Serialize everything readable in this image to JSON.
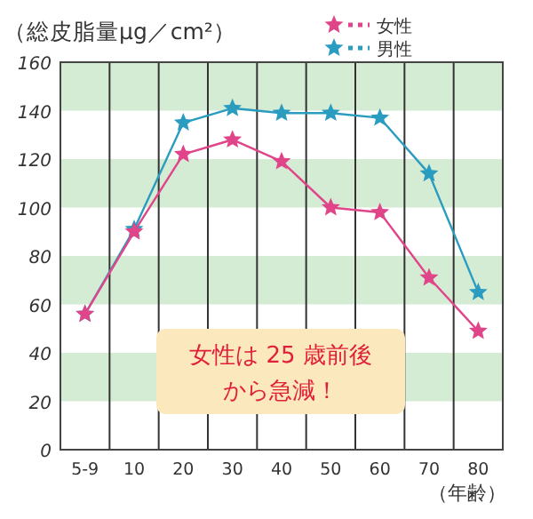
{
  "chart_data": {
    "type": "line",
    "ylabel": "（総皮脂量μg／cm²）",
    "xlabel": "（年齢）",
    "categories": [
      "5-9",
      "10",
      "20",
      "30",
      "40",
      "50",
      "60",
      "70",
      "80"
    ],
    "series": [
      {
        "name": "女性",
        "color": "#e0458a",
        "values": [
          56,
          90,
          122,
          128,
          119,
          100,
          98,
          71,
          49
        ]
      },
      {
        "name": "男性",
        "color": "#2a9cc0",
        "values": [
          56,
          91,
          135,
          141,
          139,
          139,
          137,
          114,
          65
        ]
      }
    ],
    "ylim": [
      0,
      160
    ],
    "yticks": [
      0,
      20,
      40,
      60,
      80,
      100,
      120,
      140,
      160
    ],
    "bands": [
      {
        "axis": "y",
        "from": 20,
        "to": 40,
        "color": "#d4ebd4"
      },
      {
        "axis": "y",
        "from": 60,
        "to": 80,
        "color": "#d4ebd4"
      },
      {
        "axis": "y",
        "from": 100,
        "to": 120,
        "color": "#d4ebd4"
      },
      {
        "axis": "y",
        "from": 140,
        "to": 160,
        "color": "#d4ebd4"
      }
    ],
    "grid": "x",
    "marker": "star",
    "line_style": "solid",
    "legend": "top right",
    "annotations": [
      "女性は 25 歳前後",
      "から急減！"
    ]
  }
}
